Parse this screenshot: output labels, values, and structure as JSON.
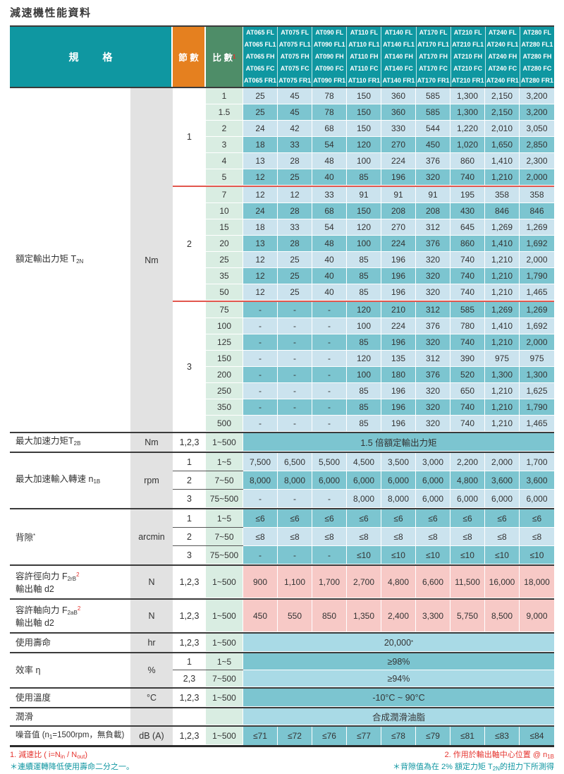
{
  "title": "減速機性能資料",
  "colors": {
    "header_teal": "#0F97A1",
    "stages_orange": "#E5801F",
    "ratio_green": "#4E8D68",
    "row_light": "#CBE3EE",
    "row_dark": "#7CC5D0",
    "merged_light": "#A9DAE6",
    "ratio_mint": "#D9EDE2",
    "unit_gray": "#E2E2E2",
    "force_pink": "#F7C9C6",
    "separator_red": "#E2574E",
    "note_red": "#E5332E",
    "note_teal": "#0F96A1"
  },
  "header": {
    "spec_label": "規 格",
    "stages_label": "節 數",
    "ratio_label": "比 數",
    "ratio_mark": "1",
    "models": [
      [
        "AT065 FL",
        "AT065 FL1",
        "AT065 FH",
        "AT065 FC",
        "AT065 FR1"
      ],
      [
        "AT075 FL",
        "AT075 FL1",
        "AT075 FH",
        "AT075 FC",
        "AT075 FR1"
      ],
      [
        "AT090 FL",
        "AT090 FL1",
        "AT090 FH",
        "AT090 FC",
        "AT090 FR1"
      ],
      [
        "AT110 FL",
        "AT110 FL1",
        "AT110 FH",
        "AT110 FC",
        "AT110 FR1"
      ],
      [
        "AT140 FL",
        "AT140 FL1",
        "AT140 FH",
        "AT140 FC",
        "AT140 FR1"
      ],
      [
        "AT170 FL",
        "AT170 FL1",
        "AT170 FH",
        "AT170 FC",
        "AT170 FR1"
      ],
      [
        "AT210 FL",
        "AT210 FL1",
        "AT210 FH",
        "AT210 FC",
        "AT210 FR1"
      ],
      [
        "AT240 FL",
        "AT240 FL1",
        "AT240 FH",
        "AT240 FC",
        "AT240 FR1"
      ],
      [
        "AT280 FL",
        "AT280 FL1",
        "AT280 FH",
        "AT280 FC",
        "AT280 FR1"
      ]
    ]
  },
  "rated_torque": {
    "label": "額定輸出力矩 T",
    "label_sub": "2N",
    "unit": "Nm",
    "sections": [
      {
        "stage": "1",
        "rows": [
          {
            "ratio": "1",
            "values": [
              "25",
              "45",
              "78",
              "150",
              "360",
              "585",
              "1,300",
              "2,150",
              "3,200"
            ]
          },
          {
            "ratio": "1.5",
            "values": [
              "25",
              "45",
              "78",
              "150",
              "360",
              "585",
              "1,300",
              "2,150",
              "3,200"
            ]
          },
          {
            "ratio": "2",
            "values": [
              "24",
              "42",
              "68",
              "150",
              "330",
              "544",
              "1,220",
              "2,010",
              "3,050"
            ]
          },
          {
            "ratio": "3",
            "values": [
              "18",
              "33",
              "54",
              "120",
              "270",
              "450",
              "1,020",
              "1,650",
              "2,850"
            ]
          },
          {
            "ratio": "4",
            "values": [
              "13",
              "28",
              "48",
              "100",
              "224",
              "376",
              "860",
              "1,410",
              "2,300"
            ]
          },
          {
            "ratio": "5",
            "values": [
              "12",
              "25",
              "40",
              "85",
              "196",
              "320",
              "740",
              "1,210",
              "2,000"
            ]
          }
        ]
      },
      {
        "stage": "2",
        "rows": [
          {
            "ratio": "7",
            "values": [
              "12",
              "12",
              "33",
              "91",
              "91",
              "91",
              "195",
              "358",
              "358"
            ]
          },
          {
            "ratio": "10",
            "values": [
              "24",
              "28",
              "68",
              "150",
              "208",
              "208",
              "430",
              "846",
              "846"
            ]
          },
          {
            "ratio": "15",
            "values": [
              "18",
              "33",
              "54",
              "120",
              "270",
              "312",
              "645",
              "1,269",
              "1,269"
            ]
          },
          {
            "ratio": "20",
            "values": [
              "13",
              "28",
              "48",
              "100",
              "224",
              "376",
              "860",
              "1,410",
              "1,692"
            ]
          },
          {
            "ratio": "25",
            "values": [
              "12",
              "25",
              "40",
              "85",
              "196",
              "320",
              "740",
              "1,210",
              "2,000"
            ]
          },
          {
            "ratio": "35",
            "values": [
              "12",
              "25",
              "40",
              "85",
              "196",
              "320",
              "740",
              "1,210",
              "1,790"
            ]
          },
          {
            "ratio": "50",
            "values": [
              "12",
              "25",
              "40",
              "85",
              "196",
              "320",
              "740",
              "1,210",
              "1,465"
            ]
          }
        ]
      },
      {
        "stage": "3",
        "rows": [
          {
            "ratio": "75",
            "values": [
              "-",
              "-",
              "-",
              "120",
              "210",
              "312",
              "585",
              "1,269",
              "1,269"
            ]
          },
          {
            "ratio": "100",
            "values": [
              "-",
              "-",
              "-",
              "100",
              "224",
              "376",
              "780",
              "1,410",
              "1,692"
            ]
          },
          {
            "ratio": "125",
            "values": [
              "-",
              "-",
              "-",
              "85",
              "196",
              "320",
              "740",
              "1,210",
              "2,000"
            ]
          },
          {
            "ratio": "150",
            "values": [
              "-",
              "-",
              "-",
              "120",
              "135",
              "312",
              "390",
              "975",
              "975"
            ]
          },
          {
            "ratio": "200",
            "values": [
              "-",
              "-",
              "-",
              "100",
              "180",
              "376",
              "520",
              "1,300",
              "1,300"
            ]
          },
          {
            "ratio": "250",
            "values": [
              "-",
              "-",
              "-",
              "85",
              "196",
              "320",
              "650",
              "1,210",
              "1,625"
            ]
          },
          {
            "ratio": "350",
            "values": [
              "-",
              "-",
              "-",
              "85",
              "196",
              "320",
              "740",
              "1,210",
              "1,790"
            ]
          },
          {
            "ratio": "500",
            "values": [
              "-",
              "-",
              "-",
              "85",
              "196",
              "320",
              "740",
              "1,210",
              "1,465"
            ]
          }
        ]
      }
    ]
  },
  "max_accel_torque": {
    "label": "最大加速力矩T",
    "label_sub": "2B",
    "unit": "Nm",
    "stages": "1,2,3",
    "ratio": "1~500",
    "merged": "1.5 倍額定輸出力矩"
  },
  "max_accel_speed": {
    "label": "最大加速輸入轉速 n",
    "label_sub": "1B",
    "unit": "rpm",
    "subrows": [
      {
        "stage": "1",
        "ratio": "1~5",
        "values": [
          "7,500",
          "6,500",
          "5,500",
          "4,500",
          "3,500",
          "3,000",
          "2,200",
          "2,000",
          "1,700"
        ]
      },
      {
        "stage": "2",
        "ratio": "7~50",
        "values": [
          "8,000",
          "8,000",
          "6,000",
          "6,000",
          "6,000",
          "6,000",
          "4,800",
          "3,600",
          "3,600"
        ]
      },
      {
        "stage": "3",
        "ratio": "75~500",
        "values": [
          "-",
          "-",
          "-",
          "8,000",
          "8,000",
          "6,000",
          "6,000",
          "6,000",
          "6,000"
        ]
      }
    ]
  },
  "backlash": {
    "label": "背隙",
    "label_mark": "*",
    "unit": "arcmin",
    "subrows": [
      {
        "stage": "1",
        "ratio": "1~5",
        "values": [
          "≤6",
          "≤6",
          "≤6",
          "≤6",
          "≤6",
          "≤6",
          "≤6",
          "≤6",
          "≤6"
        ]
      },
      {
        "stage": "2",
        "ratio": "7~50",
        "values": [
          "≤8",
          "≤8",
          "≤8",
          "≤8",
          "≤8",
          "≤8",
          "≤8",
          "≤8",
          "≤8"
        ]
      },
      {
        "stage": "3",
        "ratio": "75~500",
        "values": [
          "-",
          "-",
          "-",
          "≤10",
          "≤10",
          "≤10",
          "≤10",
          "≤10",
          "≤10"
        ]
      }
    ]
  },
  "radial_force": {
    "label": "容許徑向力  F",
    "label_sub": "2rB",
    "label_sup": "2",
    "label2": "輸出軸 d2",
    "unit": "N",
    "stages": "1,2,3",
    "ratio": "1~500",
    "values": [
      "900",
      "1,100",
      "1,700",
      "2,700",
      "4,800",
      "6,600",
      "11,500",
      "16,000",
      "18,000"
    ]
  },
  "axial_force": {
    "label": "容許軸向力  F",
    "label_sub": "2aB",
    "label_sup": "2",
    "label2": "輸出軸 d2",
    "unit": "N",
    "stages": "1,2,3",
    "ratio": "1~500",
    "values": [
      "450",
      "550",
      "850",
      "1,350",
      "2,400",
      "3,300",
      "5,750",
      "8,500",
      "9,000"
    ]
  },
  "service_life": {
    "label": "使用壽命",
    "unit": "hr",
    "stages": "1,2,3",
    "ratio": "1~500",
    "merged": "20,000",
    "merged_mark": "*"
  },
  "efficiency": {
    "label": "效率 η",
    "unit": "%",
    "subrows": [
      {
        "stage": "1",
        "ratio": "1~5",
        "merged": "≥98%"
      },
      {
        "stage": "2,3",
        "ratio": "7~500",
        "merged": "≥94%"
      }
    ]
  },
  "temperature": {
    "label": "使用溫度",
    "unit": "°C",
    "stages": "1,2,3",
    "ratio": "1~500",
    "merged": "-10°C ~ 90°C"
  },
  "lubrication": {
    "label": "潤滑",
    "merged": "合成潤滑油脂"
  },
  "noise": {
    "label": "噪音值 (n",
    "label_sub": "1",
    "label_post": "=1500rpm，無負載)",
    "unit": "dB (A)",
    "stages": "1,2,3",
    "ratio": "1~500",
    "values": [
      "≤71",
      "≤72",
      "≤76",
      "≤77",
      "≤78",
      "≤79",
      "≤81",
      "≤83",
      "≤84"
    ]
  },
  "footnotes": {
    "n1_pre": "1. 減速比 ( i=N",
    "n1_sub1": "in",
    "n1_mid": " / N",
    "n1_sub2": "out",
    "n1_post": ")",
    "left_star": "＊連續運轉降低使用壽命二分之一。",
    "n2_pre": "2. 作用於輸出軸中心位置 @ n",
    "n2_sub": "1B",
    "right_star_pre": "＊背隙值為在 2% 額定力矩 T",
    "right_star_sub": "2N",
    "right_star_post": "的扭力下所測得"
  }
}
